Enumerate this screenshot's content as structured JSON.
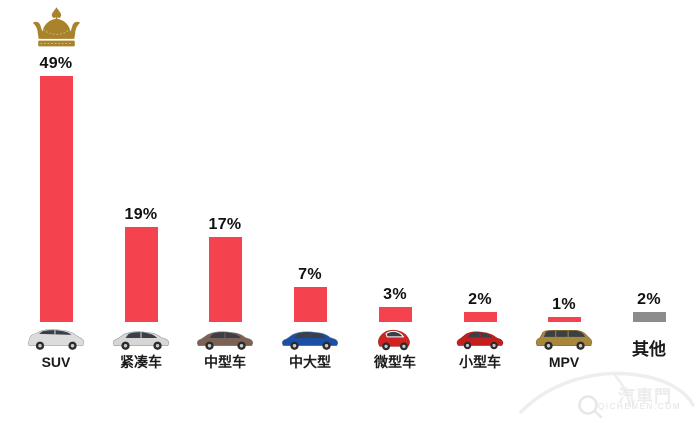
{
  "chart_data": {
    "type": "bar",
    "title": "",
    "xlabel": "",
    "ylabel": "",
    "ylim": [
      0,
      49
    ],
    "grid": false,
    "legend": false,
    "unit": "%",
    "categories": [
      "SUV",
      "紧凑车",
      "中型车",
      "中大型",
      "微型车",
      "小型车",
      "MPV",
      "其他"
    ],
    "values": [
      49,
      19,
      17,
      7,
      3,
      2,
      1,
      2
    ],
    "value_labels": [
      "49%",
      "19%",
      "17%",
      "7%",
      "3%",
      "2%",
      "1%",
      "2%"
    ],
    "bar_color_default": "#F4434F",
    "bar_color_other": "#8C8C8C",
    "crown_on_category": "SUV",
    "crown_color": "#A9832B",
    "columns": [
      {
        "label": "SUV",
        "value": 49,
        "value_label": "49%",
        "bar_color": "#F4434F",
        "icon": "suv-car-icon",
        "car_type": "suv",
        "car_color": "#DCDCDC",
        "has_crown": true
      },
      {
        "label": "紧凑车",
        "value": 19,
        "value_label": "19%",
        "bar_color": "#F4434F",
        "icon": "compact-car-icon",
        "car_type": "sedan",
        "car_color": "#D6D6D6",
        "has_crown": false
      },
      {
        "label": "中型车",
        "value": 17,
        "value_label": "17%",
        "bar_color": "#F4434F",
        "icon": "midsize-car-icon",
        "car_type": "sedan",
        "car_color": "#7C6155",
        "has_crown": false
      },
      {
        "label": "中大型",
        "value": 7,
        "value_label": "7%",
        "bar_color": "#F4434F",
        "icon": "large-car-icon",
        "car_type": "sedan",
        "car_color": "#1B4FA5",
        "has_crown": false
      },
      {
        "label": "微型车",
        "value": 3,
        "value_label": "3%",
        "bar_color": "#F4434F",
        "icon": "micro-car-icon",
        "car_type": "micro",
        "car_color": "#D02424",
        "has_crown": false
      },
      {
        "label": "小型车",
        "value": 2,
        "value_label": "2%",
        "bar_color": "#F4434F",
        "icon": "small-car-icon",
        "car_type": "hatch",
        "car_color": "#C31F1F",
        "has_crown": false
      },
      {
        "label": "MPV",
        "value": 1,
        "value_label": "1%",
        "bar_color": "#F4434F",
        "icon": "mpv-car-icon",
        "car_type": "mpv",
        "car_color": "#A8873C",
        "has_crown": false
      },
      {
        "label": "其他",
        "value": 2,
        "value_label": "2%",
        "bar_color": "#8C8C8C",
        "icon": null,
        "car_type": null,
        "car_color": null,
        "has_crown": false,
        "is_other": true
      }
    ]
  },
  "watermark": {
    "logo_text": "汽車門",
    "domain": "QICHEMEN.COM"
  }
}
